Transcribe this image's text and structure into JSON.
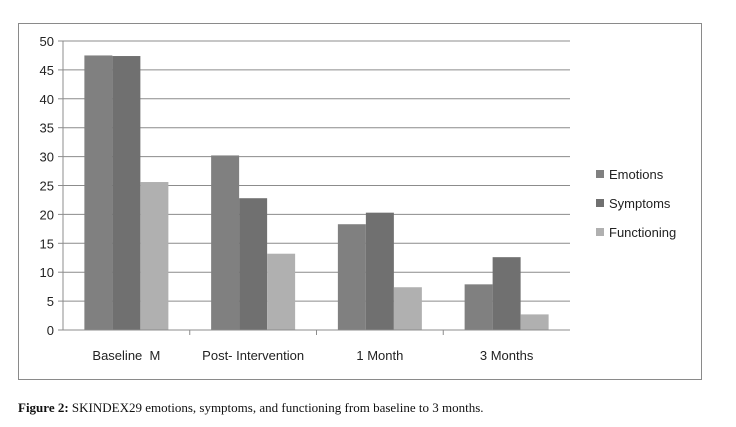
{
  "caption": {
    "label": "Figure 2:",
    "text": " SKINDEX29 emotions, symptoms, and functioning from baseline to 3 months."
  },
  "chart_data": {
    "type": "bar",
    "title": "",
    "xlabel": "",
    "ylabel": "",
    "ylim": [
      0,
      50
    ],
    "yticks": [
      0,
      5,
      10,
      15,
      20,
      25,
      30,
      35,
      40,
      45,
      50
    ],
    "grid": true,
    "legend_position": "right",
    "categories": [
      "Baseline  M",
      "Post- Intervention",
      "1 Month",
      "3 Months"
    ],
    "series": [
      {
        "name": "Emotions",
        "color": "#808080",
        "values": [
          47.5,
          30.2,
          18.3,
          7.9
        ]
      },
      {
        "name": "Symptoms",
        "color": "#707070",
        "values": [
          47.4,
          22.8,
          20.3,
          12.6
        ]
      },
      {
        "name": "Functioning",
        "color": "#b0b0b0",
        "values": [
          25.6,
          13.2,
          7.4,
          2.7
        ]
      }
    ]
  }
}
